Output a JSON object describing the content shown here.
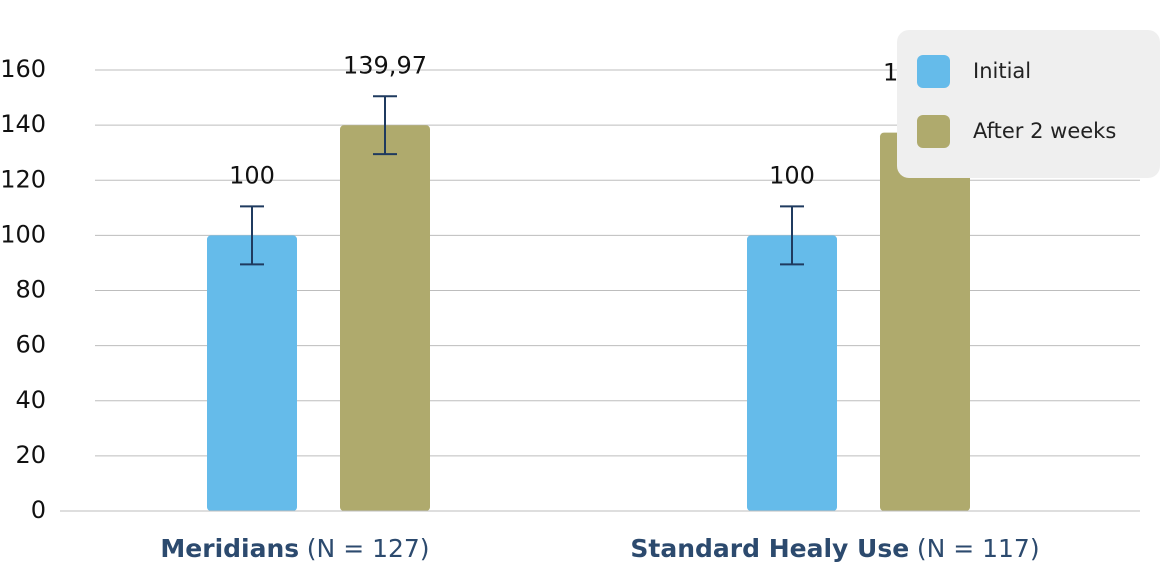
{
  "chart_data": {
    "type": "bar",
    "categories": [
      "Meridians",
      "Standard Healy Use"
    ],
    "category_notes": [
      "(N = 127)",
      "(N = 117)"
    ],
    "series": [
      {
        "name": "Initial",
        "color": "#65bbea",
        "values": [
          100,
          100
        ],
        "errors": [
          10.5,
          10.5
        ]
      },
      {
        "name": "After 2 weeks",
        "color": "#afaa6d",
        "values": [
          139.97,
          137.28
        ],
        "value_labels": [
          "139,97",
          "137,28"
        ],
        "errors": [
          10.5,
          10.5
        ]
      }
    ],
    "ylim": [
      0,
      160
    ],
    "yticks": [
      0,
      20,
      40,
      60,
      80,
      100,
      120,
      140,
      160
    ],
    "grid": true,
    "legend": "top-right",
    "error_color": "#1f3a5f"
  }
}
